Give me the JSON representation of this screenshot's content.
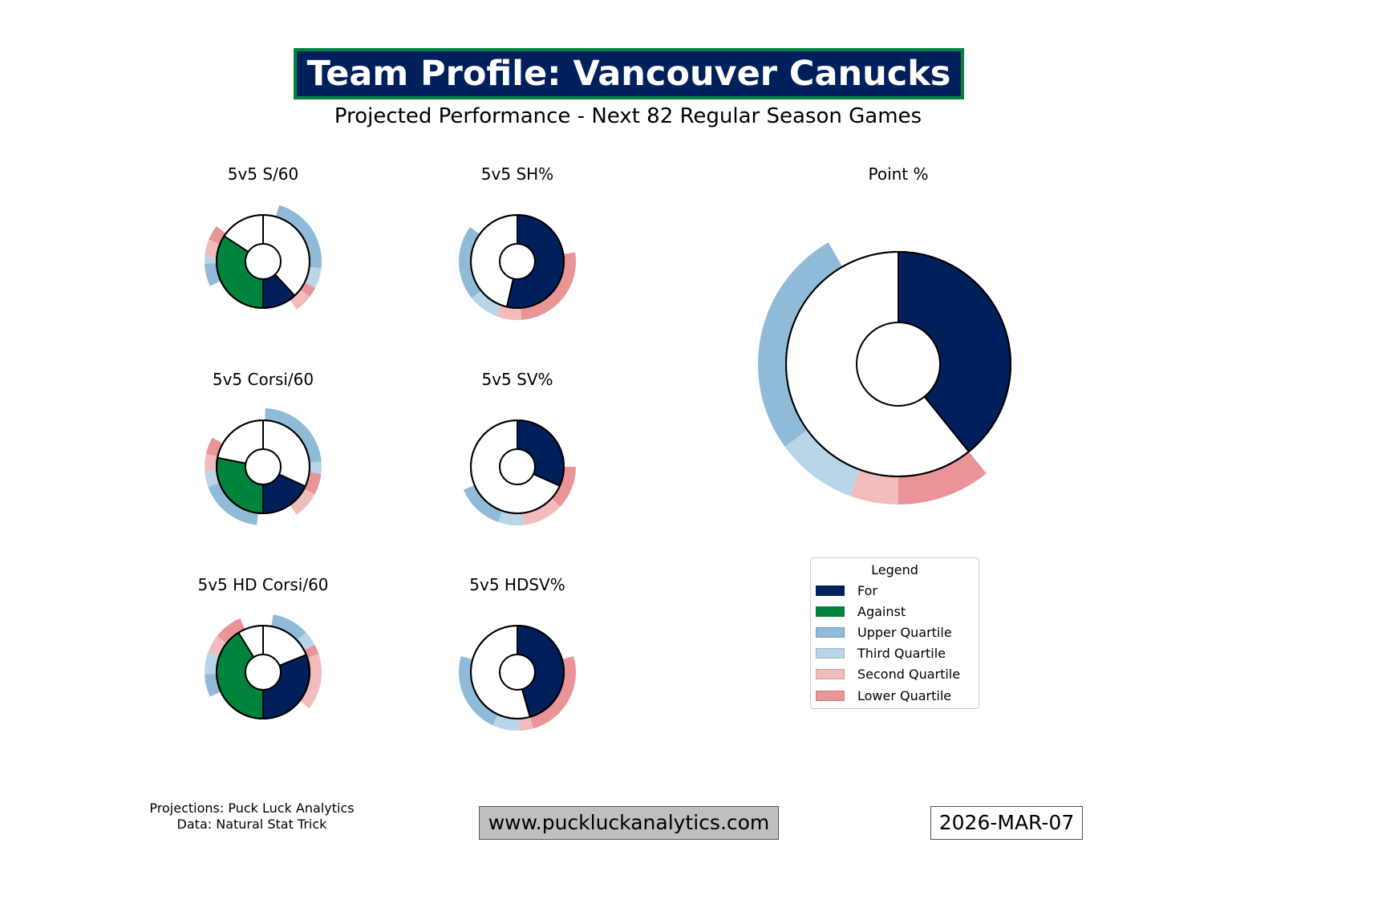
{
  "header": {
    "title": "Team Profile: Vancouver Canucks",
    "subtitle": "Projected Performance - Next 82 Regular Season Games"
  },
  "colors": {
    "for": "#00205B",
    "against": "#00843D",
    "upper": "#8FBBD9",
    "third": "#B9D6E8",
    "second": "#F2BCBC",
    "lower": "#E99496"
  },
  "chart_data": [
    {
      "type": "pie",
      "title": "5v5 S/60",
      "split": true,
      "for": [
        0.381,
        0.5
      ],
      "against": [
        0.5,
        0.842
      ],
      "ring": [
        {
          "q": "upper",
          "range": [
            0.044,
            0.269
          ]
        },
        {
          "q": "third",
          "range": [
            0.269,
            0.325
          ]
        },
        {
          "q": "lower",
          "range": [
            0.325,
            0.353
          ]
        },
        {
          "q": "second",
          "range": [
            0.353,
            0.403
          ]
        },
        {
          "q": "upper",
          "range": [
            0.681,
            0.744
          ]
        },
        {
          "q": "third",
          "range": [
            0.744,
            0.764
          ]
        },
        {
          "q": "second",
          "range": [
            0.764,
            0.811
          ]
        },
        {
          "q": "lower",
          "range": [
            0.811,
            0.853
          ]
        }
      ]
    },
    {
      "type": "pie",
      "title": "5v5 SH%",
      "split": false,
      "for": [
        0,
        0.536
      ],
      "ring": [
        {
          "q": "lower",
          "range": [
            0.225,
            0.489
          ]
        },
        {
          "q": "second",
          "range": [
            0.489,
            0.558
          ]
        },
        {
          "q": "third",
          "range": [
            0.558,
            0.642
          ]
        },
        {
          "q": "upper",
          "range": [
            0.642,
            0.85
          ]
        }
      ]
    },
    {
      "type": "pie",
      "title": "5v5 Corsi/60",
      "split": true,
      "for": [
        0.319,
        0.5
      ],
      "against": [
        0.5,
        0.781
      ],
      "ring": [
        {
          "q": "upper",
          "range": [
            0.006,
            0.236
          ]
        },
        {
          "q": "third",
          "range": [
            0.236,
            0.269
          ]
        },
        {
          "q": "lower",
          "range": [
            0.269,
            0.328
          ]
        },
        {
          "q": "second",
          "range": [
            0.328,
            0.403
          ]
        },
        {
          "q": "upper",
          "range": [
            0.517,
            0.694
          ]
        },
        {
          "q": "third",
          "range": [
            0.694,
            0.736
          ]
        },
        {
          "q": "second",
          "range": [
            0.736,
            0.786
          ]
        },
        {
          "q": "lower",
          "range": [
            0.786,
            0.833
          ]
        }
      ]
    },
    {
      "type": "pie",
      "title": "5v5 SV%",
      "split": false,
      "for": [
        0,
        0.317
      ],
      "ring": [
        {
          "q": "lower",
          "range": [
            0.25,
            0.369
          ]
        },
        {
          "q": "second",
          "range": [
            0.369,
            0.483
          ]
        },
        {
          "q": "third",
          "range": [
            0.483,
            0.553
          ]
        },
        {
          "q": "upper",
          "range": [
            0.553,
            0.686
          ]
        }
      ]
    },
    {
      "type": "pie",
      "title": "5v5 HD Corsi/60",
      "split": true,
      "for": [
        0.189,
        0.5
      ],
      "against": [
        0.5,
        0.911
      ],
      "ring": [
        {
          "q": "upper",
          "range": [
            0.028,
            0.131
          ]
        },
        {
          "q": "third",
          "range": [
            0.131,
            0.172
          ]
        },
        {
          "q": "lower",
          "range": [
            0.172,
            0.2
          ]
        },
        {
          "q": "second",
          "range": [
            0.2,
            0.356
          ]
        },
        {
          "q": "upper",
          "range": [
            0.681,
            0.744
          ]
        },
        {
          "q": "third",
          "range": [
            0.744,
            0.806
          ]
        },
        {
          "q": "second",
          "range": [
            0.806,
            0.856
          ]
        },
        {
          "q": "lower",
          "range": [
            0.856,
            0.936
          ]
        }
      ]
    },
    {
      "type": "pie",
      "title": "5v5 HDSV%",
      "split": false,
      "for": [
        0,
        0.456
      ],
      "ring": [
        {
          "q": "lower",
          "range": [
            0.206,
            0.456
          ]
        },
        {
          "q": "second",
          "range": [
            0.456,
            0.494
          ]
        },
        {
          "q": "third",
          "range": [
            0.494,
            0.569
          ]
        },
        {
          "q": "upper",
          "range": [
            0.569,
            0.794
          ]
        }
      ]
    },
    {
      "type": "pie",
      "title": "Point %",
      "split": false,
      "for": [
        0,
        0.392
      ],
      "ring": [
        {
          "q": "lower",
          "range": [
            0.392,
            0.5
          ]
        },
        {
          "q": "second",
          "range": [
            0.5,
            0.556
          ]
        },
        {
          "q": "third",
          "range": [
            0.556,
            0.65
          ]
        },
        {
          "q": "upper",
          "range": [
            0.65,
            0.917
          ]
        }
      ]
    }
  ],
  "legend": {
    "title": "Legend",
    "items": [
      {
        "key": "for",
        "label": "For"
      },
      {
        "key": "against",
        "label": "Against"
      },
      {
        "key": "upper",
        "label": "Upper Quartile"
      },
      {
        "key": "third",
        "label": "Third Quartile"
      },
      {
        "key": "second",
        "label": "Second Quartile"
      },
      {
        "key": "lower",
        "label": "Lower Quartile"
      }
    ]
  },
  "footer": {
    "credit_line1": "Projections: Puck Luck Analytics",
    "credit_line2": "Data: Natural Stat Trick",
    "url": "www.puckluckanalytics.com",
    "date": "2026-MAR-07"
  }
}
